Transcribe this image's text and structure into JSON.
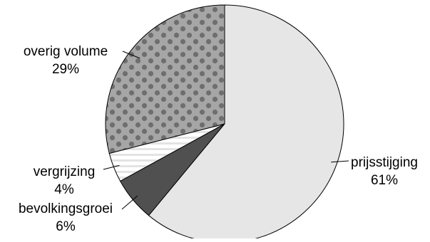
{
  "chart_data": {
    "type": "pie",
    "title": "",
    "slices": [
      {
        "label": "prijsstijging",
        "value": 61,
        "value_text": "61%",
        "color": "#e6e6e6",
        "pattern": "solid"
      },
      {
        "label": "bevolkingsgroei",
        "value": 6,
        "value_text": "6%",
        "color": "#505050",
        "pattern": "solid"
      },
      {
        "label": "vergrijzing",
        "value": 4,
        "value_text": "4%",
        "color": "#ffffff",
        "pattern": "horizontal-stripes"
      },
      {
        "label": "overig volume",
        "value": 29,
        "value_text": "29%",
        "color": "#a6a6a6",
        "pattern": "dots"
      }
    ],
    "start_angle": "12 o'clock",
    "direction": "clockwise",
    "legend": "none",
    "labels": "outside with leader lines"
  }
}
